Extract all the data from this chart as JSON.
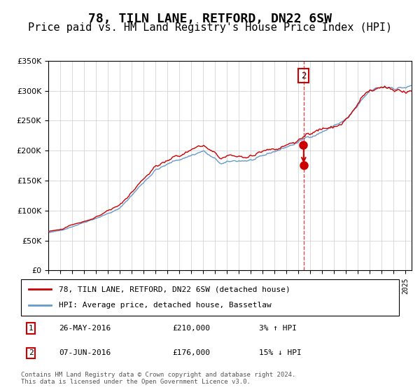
{
  "title": "78, TILN LANE, RETFORD, DN22 6SW",
  "subtitle": "Price paid vs. HM Land Registry's House Price Index (HPI)",
  "ylim": [
    0,
    350000
  ],
  "yticks": [
    0,
    50000,
    100000,
    150000,
    200000,
    250000,
    300000,
    350000
  ],
  "transaction1": {
    "date": "26-MAY-2016",
    "price": 210000,
    "label": "1",
    "hpi_pct": "3% ↑ HPI"
  },
  "transaction2": {
    "date": "07-JUN-2016",
    "price": 176000,
    "label": "2",
    "hpi_pct": "15% ↓ HPI"
  },
  "transaction2_x": 2016.44,
  "transaction1_x": 2016.4,
  "vline_x": 2016.44,
  "legend_red": "78, TILN LANE, RETFORD, DN22 6SW (detached house)",
  "legend_blue": "HPI: Average price, detached house, Bassetlaw",
  "footer": "Contains HM Land Registry data © Crown copyright and database right 2024.\nThis data is licensed under the Open Government Licence v3.0.",
  "red_color": "#cc0000",
  "blue_color": "#6699cc",
  "background_color": "#ffffff",
  "grid_color": "#cccccc",
  "title_fontsize": 13,
  "subtitle_fontsize": 11
}
